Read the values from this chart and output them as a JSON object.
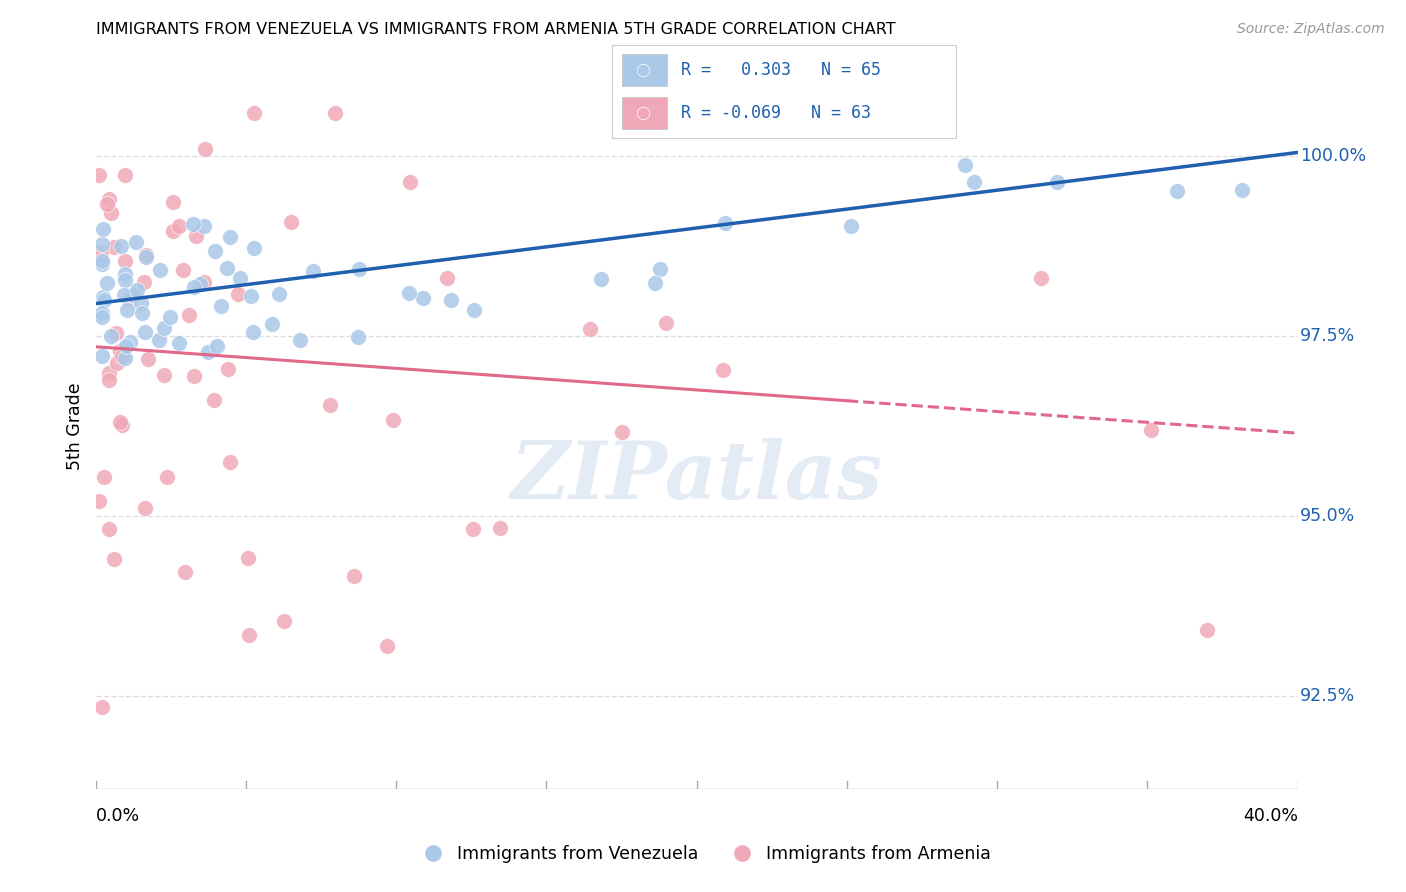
{
  "title": "IMMIGRANTS FROM VENEZUELA VS IMMIGRANTS FROM ARMENIA 5TH GRADE CORRELATION CHART",
  "source": "Source: ZipAtlas.com",
  "ylabel": "5th Grade",
  "ytick_values": [
    92.5,
    95.0,
    97.5,
    100.0
  ],
  "xlim": [
    0.0,
    40.0
  ],
  "ylim": [
    91.2,
    101.3
  ],
  "blue_color": "#aac8e8",
  "pink_color": "#f0a8b8",
  "blue_line_color": "#2060b0",
  "pink_line_color": "#e06888",
  "background_color": "#ffffff",
  "grid_color": "#dddddd",
  "watermark_color": "#ccdded",
  "blue_trend_y0": 97.95,
  "blue_trend_y1": 100.05,
  "pink_trend_y0": 97.35,
  "pink_trend_y1": 96.15,
  "pink_solid_end_x": 25.0,
  "legend_line1": "R =   0.303   N = 65",
  "legend_line2": "R = -0.069   N = 63"
}
